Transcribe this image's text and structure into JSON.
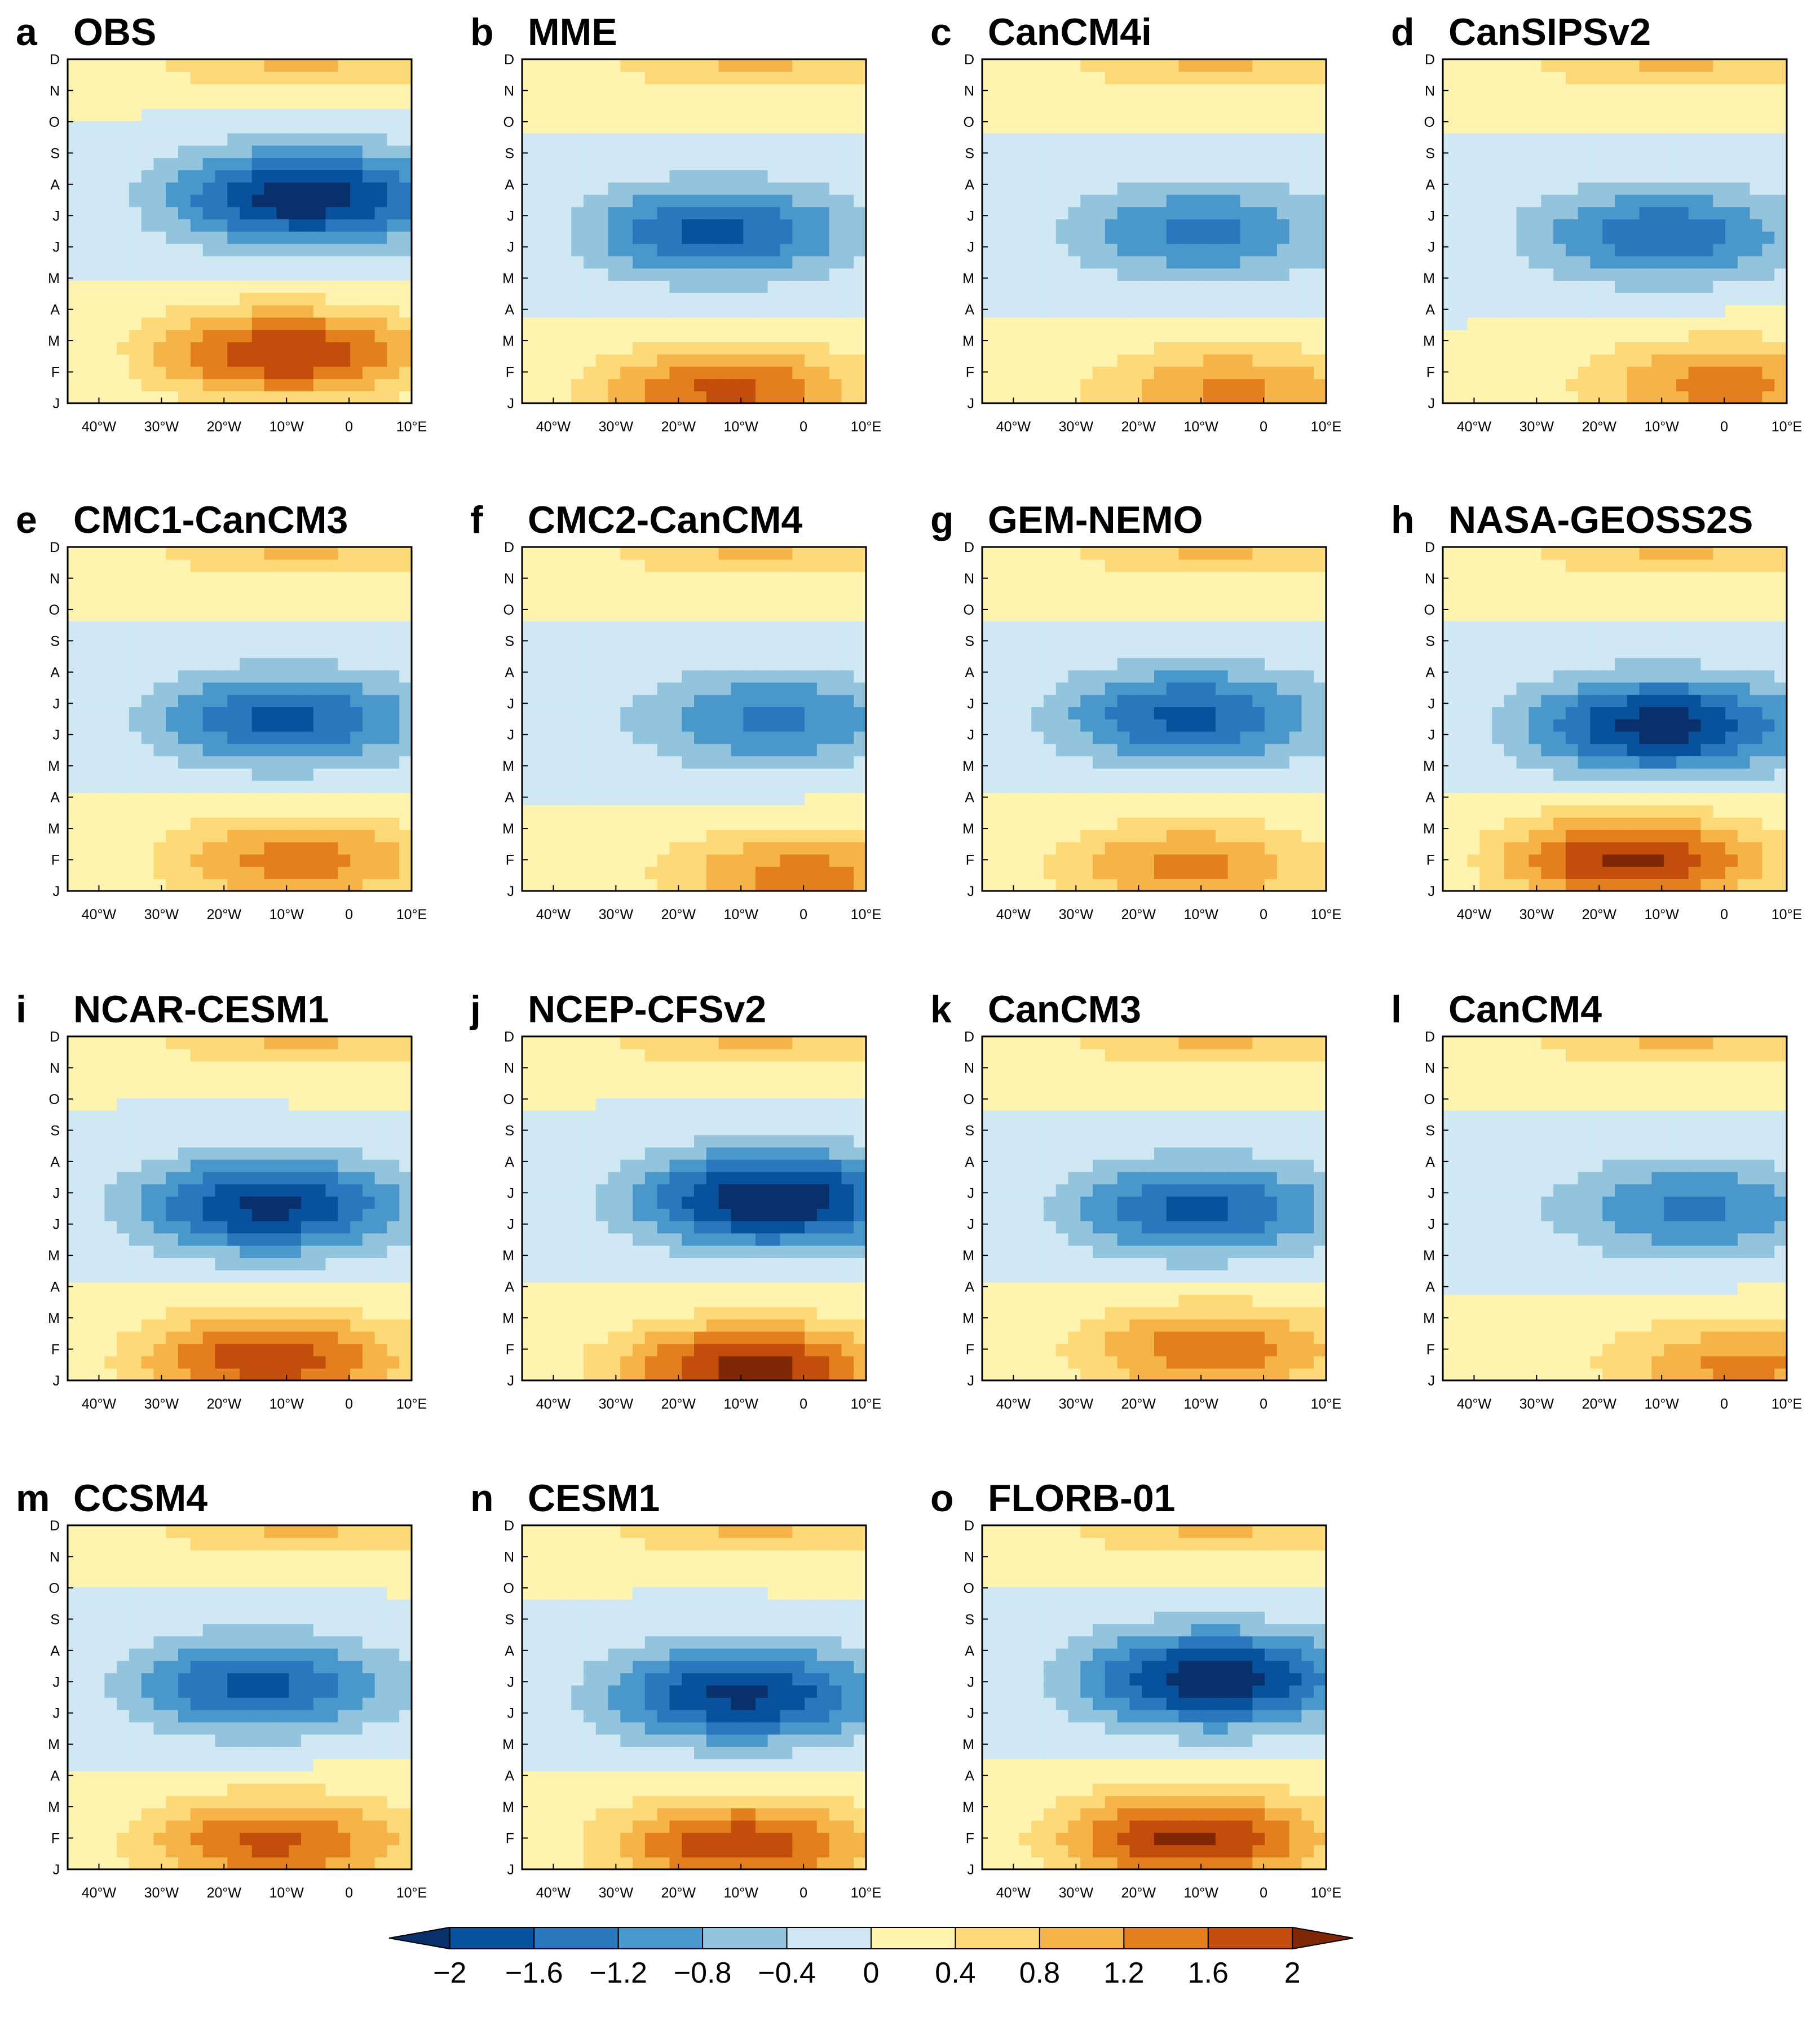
{
  "chart_data": {
    "type": "contour-panels",
    "x_ticks": [
      "40°W",
      "30°W",
      "20°W",
      "10°W",
      "0",
      "10°E"
    ],
    "x_values": [
      -40,
      -30,
      -20,
      -10,
      0,
      10
    ],
    "xlim": [
      -45,
      10
    ],
    "y_ticks": [
      "J",
      "F",
      "M",
      "A",
      "M",
      "J",
      "J",
      "A",
      "S",
      "O",
      "N",
      "D"
    ],
    "ylim": [
      1,
      12
    ],
    "colorbar": {
      "levels": [
        -2,
        -1.6,
        -1.2,
        -0.8,
        -0.4,
        0,
        0.4,
        0.8,
        1.2,
        1.6,
        2
      ],
      "labels": [
        "−2",
        "−1.6",
        "−1.2",
        "−0.8",
        "−0.4",
        "0",
        "0.4",
        "0.8",
        "1.2",
        "1.6",
        "2"
      ],
      "colors": [
        "#08306b",
        "#08519c",
        "#2a77bd",
        "#4a98cb",
        "#93c4de",
        "#cfe8f3",
        "#fff3b0",
        "#fdd978",
        "#f6b448",
        "#e47f1e",
        "#c34d0a",
        "#7f2704"
      ]
    },
    "panels": [
      {
        "letter": "a",
        "title": "OBS",
        "neg_center": [
          -7,
          7.6
        ],
        "neg_amp": 2.3,
        "pos_center": [
          -10,
          2.6
        ],
        "pos_amp": 2.0,
        "split": 5.3
      },
      {
        "letter": "b",
        "title": "MME",
        "neg_center": [
          -14,
          6.5
        ],
        "neg_amp": 1.7,
        "pos_center": [
          -12,
          1.4
        ],
        "pos_amp": 1.7,
        "split": 4.4
      },
      {
        "letter": "c",
        "title": "CanCM4i",
        "neg_center": [
          -10,
          6.5
        ],
        "neg_amp": 1.3,
        "pos_center": [
          -5,
          1.4
        ],
        "pos_amp": 1.3,
        "split": 4.2
      },
      {
        "letter": "d",
        "title": "CanSIPSv2",
        "neg_center": [
          -10,
          6.4
        ],
        "neg_amp": 1.5,
        "pos_center": [
          0,
          1.6
        ],
        "pos_amp": 1.4,
        "split": 4.3
      },
      {
        "letter": "e",
        "title": "CMC1-CanCM3",
        "neg_center": [
          -10,
          6.5
        ],
        "neg_amp": 1.7,
        "pos_center": [
          -8,
          2.0
        ],
        "pos_amp": 1.4,
        "split": 4.3
      },
      {
        "letter": "f",
        "title": "CMC2-CanCM4",
        "neg_center": [
          -5,
          6.5
        ],
        "neg_amp": 1.3,
        "pos_center": [
          0,
          1.5
        ],
        "pos_amp": 1.4,
        "split": 4.2
      },
      {
        "letter": "g",
        "title": "GEM-NEMO",
        "neg_center": [
          -12,
          6.6
        ],
        "neg_amp": 1.7,
        "pos_center": [
          -12,
          1.8
        ],
        "pos_amp": 1.3,
        "split": 4.4
      },
      {
        "letter": "h",
        "title": "NASA-GEOSS2S",
        "neg_center": [
          -10,
          6.3
        ],
        "neg_amp": 2.2,
        "pos_center": [
          -15,
          2.0
        ],
        "pos_amp": 2.1,
        "split": 4.6
      },
      {
        "letter": "i",
        "title": "NCAR-CESM1",
        "neg_center": [
          -13,
          6.6
        ],
        "neg_amp": 2.1,
        "pos_center": [
          -13,
          1.7
        ],
        "pos_amp": 1.9,
        "split": 4.6
      },
      {
        "letter": "j",
        "title": "NCEP-CFSv2",
        "neg_center": [
          -5,
          6.8
        ],
        "neg_amp": 2.4,
        "pos_center": [
          -8,
          1.4
        ],
        "pos_amp": 2.2,
        "split": 4.8
      },
      {
        "letter": "k",
        "title": "CanCM3",
        "neg_center": [
          -10,
          6.5
        ],
        "neg_amp": 1.7,
        "pos_center": [
          -8,
          2.0
        ],
        "pos_amp": 1.5,
        "split": 4.4
      },
      {
        "letter": "l",
        "title": "CanCM4",
        "neg_center": [
          -5,
          6.5
        ],
        "neg_amp": 1.3,
        "pos_center": [
          3,
          1.5
        ],
        "pos_amp": 1.3,
        "split": 4.2
      },
      {
        "letter": "m",
        "title": "CCSM4",
        "neg_center": [
          -15,
          6.9
        ],
        "neg_amp": 1.7,
        "pos_center": [
          -12,
          1.9
        ],
        "pos_amp": 1.7,
        "split": 4.5
      },
      {
        "letter": "n",
        "title": "CESM1",
        "neg_center": [
          -10,
          6.6
        ],
        "neg_amp": 2.1,
        "pos_center": [
          -10,
          1.8
        ],
        "pos_amp": 1.9,
        "split": 4.5
      },
      {
        "letter": "o",
        "title": "FLORB-01",
        "neg_center": [
          -8,
          7.1
        ],
        "neg_amp": 2.3,
        "pos_center": [
          -12,
          2.0
        ],
        "pos_amp": 2.1,
        "split": 4.8
      }
    ]
  }
}
